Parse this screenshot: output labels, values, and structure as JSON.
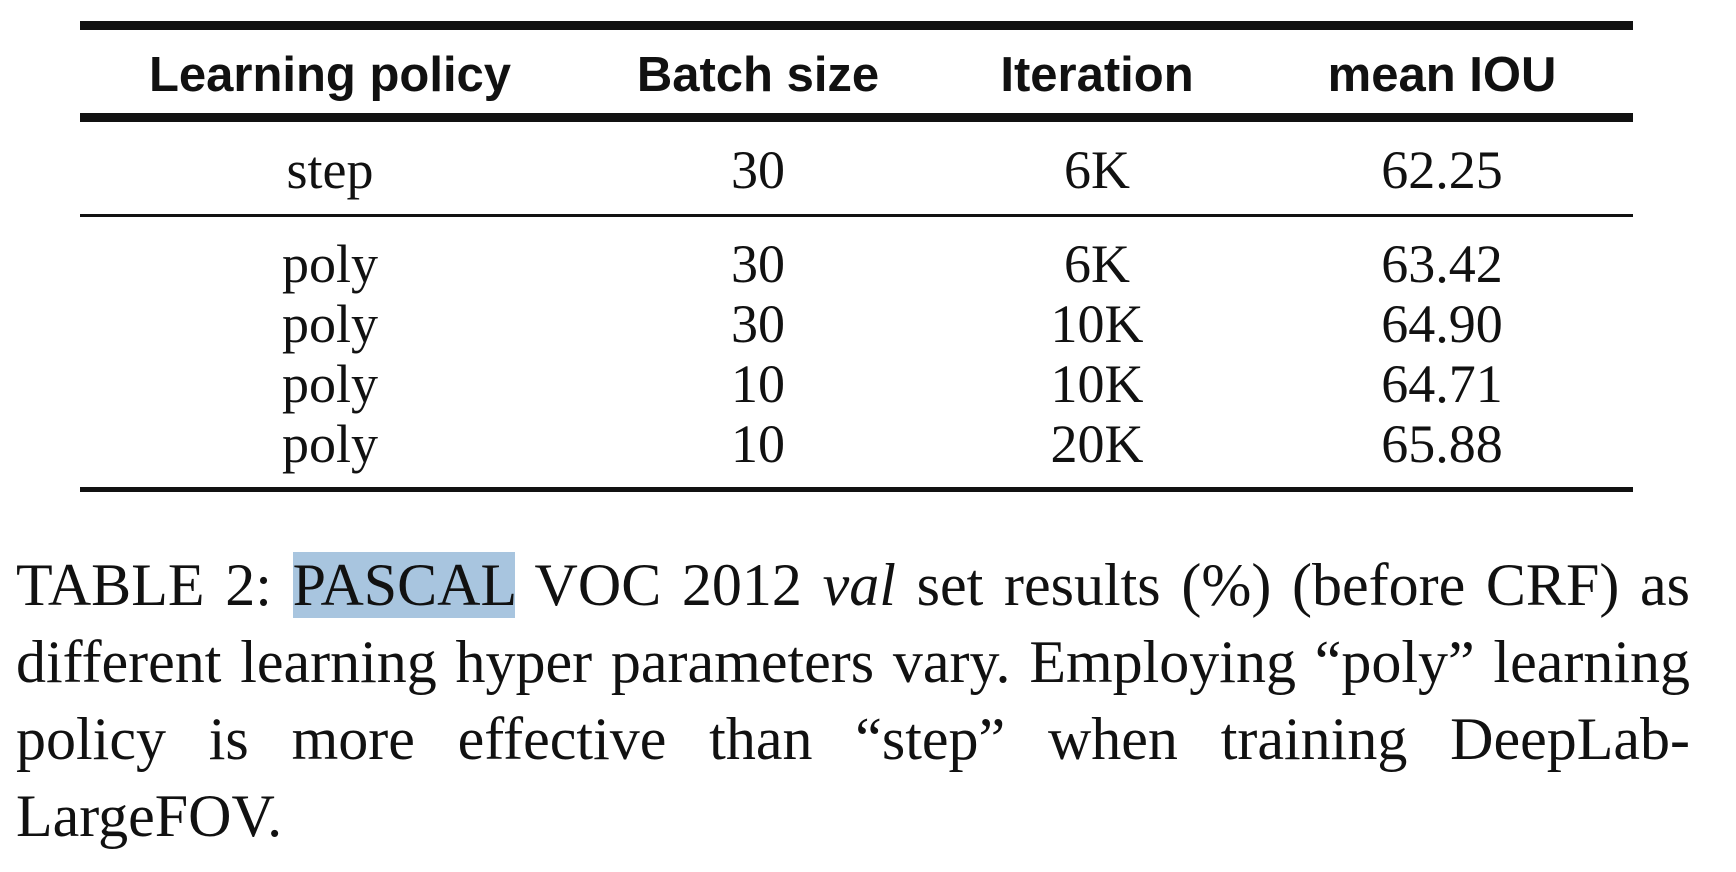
{
  "table": {
    "headers": [
      "Learning policy",
      "Batch size",
      "Iteration",
      "mean IOU"
    ],
    "rows": [
      [
        "step",
        "30",
        "6K",
        "62.25"
      ],
      [
        "poly",
        "30",
        "6K",
        "63.42"
      ],
      [
        "poly",
        "30",
        "10K",
        "64.90"
      ],
      [
        "poly",
        "10",
        "10K",
        "64.71"
      ],
      [
        "poly",
        "10",
        "20K",
        "65.88"
      ]
    ]
  },
  "caption": {
    "label": "TABLE 2:",
    "highlighted": "PASCAL",
    "part1": "VOC 2012",
    "italic": "val",
    "part2": "set results (%) (before CRF) as different learning hyper parameters vary. Employing “poly” learning policy is more effective than “step” when training DeepLab-LargeFOV."
  },
  "colors": {
    "highlight": "#a8c5df",
    "text": "#111111"
  }
}
